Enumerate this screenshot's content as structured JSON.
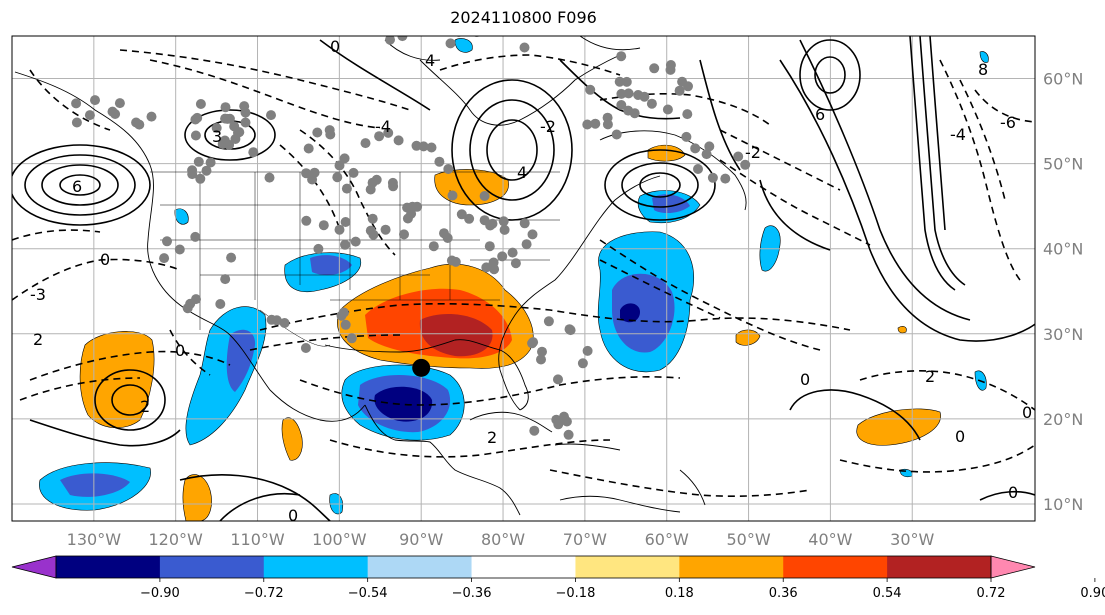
{
  "title": "2024110800 F096",
  "map": {
    "lon_range": [
      -140,
      -15
    ],
    "lat_range": [
      8,
      65
    ],
    "lon_ticks": [
      {
        "value": -130,
        "label": "130°W"
      },
      {
        "value": -120,
        "label": "120°W"
      },
      {
        "value": -110,
        "label": "110°W"
      },
      {
        "value": -100,
        "label": "100°W"
      },
      {
        "value": -90,
        "label": "90°W"
      },
      {
        "value": -80,
        "label": "80°W"
      },
      {
        "value": -70,
        "label": "70°W"
      },
      {
        "value": -60,
        "label": "60°W"
      },
      {
        "value": -50,
        "label": "50°W"
      },
      {
        "value": -40,
        "label": "40°W"
      },
      {
        "value": -30,
        "label": "30°W"
      }
    ],
    "lat_ticks": [
      {
        "value": 60,
        "label": "60°N"
      },
      {
        "value": 50,
        "label": "50°N"
      },
      {
        "value": 40,
        "label": "40°N"
      },
      {
        "value": 30,
        "label": "30°N"
      },
      {
        "value": 20,
        "label": "20°N"
      },
      {
        "value": 10,
        "label": "10°N"
      }
    ],
    "focus_point": {
      "lon": -90,
      "lat": 26
    },
    "contour_labels": [
      "0",
      "2",
      "3",
      "4",
      "6",
      "8",
      "-2",
      "-3",
      "-4",
      "-6"
    ]
  },
  "colorbar": {
    "labels": [
      "−0.90",
      "−0.72",
      "−0.54",
      "−0.36",
      "−0.18",
      "0.18",
      "0.36",
      "0.54",
      "0.72",
      "0.90"
    ],
    "colors": [
      "#9932cc",
      "#000080",
      "#3a5bd0",
      "#00bfff",
      "#add8f5",
      "#ffffff",
      "#ffe680",
      "#ffa500",
      "#ff4500",
      "#b22222",
      "#ff88b0"
    ]
  },
  "colors": {
    "gray_dot": "#808080",
    "grid": "#b4b4b4",
    "tick_text": "#808080"
  }
}
